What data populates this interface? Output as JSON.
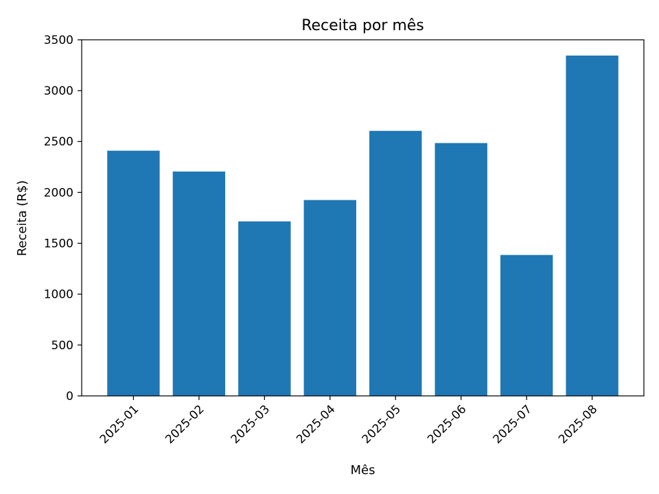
{
  "chart_data": {
    "type": "bar",
    "title": "Receita por mês",
    "xlabel": "Mês",
    "ylabel": "Receita (R$)",
    "categories": [
      "2025-01",
      "2025-02",
      "2025-03",
      "2025-04",
      "2025-05",
      "2025-06",
      "2025-07",
      "2025-08"
    ],
    "values": [
      2410,
      2205,
      1715,
      1925,
      2605,
      2485,
      1385,
      3345
    ],
    "ylim": [
      0,
      3500
    ],
    "yticks": [
      0,
      500,
      1000,
      1500,
      2000,
      2500,
      3000,
      3500
    ],
    "bar_color": "#1f77b4",
    "grid": false,
    "legend": "none"
  }
}
